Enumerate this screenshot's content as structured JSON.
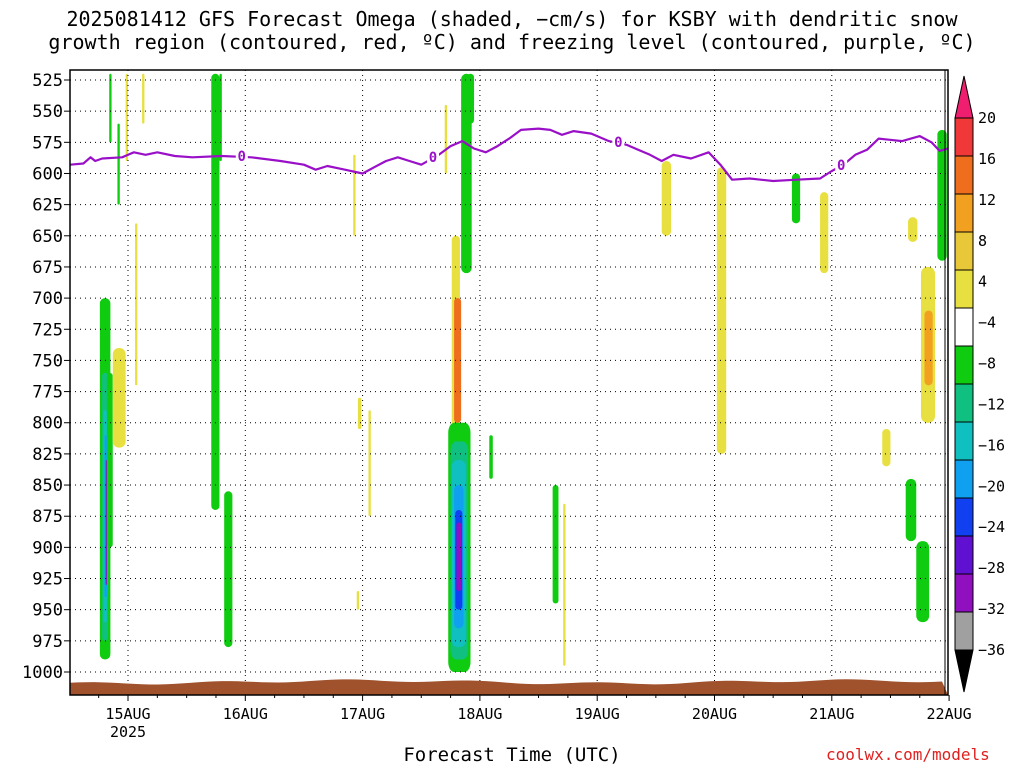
{
  "title_line1": "2025081412 GFS Forecast Omega (shaded, −cm/s) for KSBY with dendritic snow",
  "title_line2": "growth region (contoured, red, ºC) and freezing level (contoured, purple, ºC)",
  "credit": "coolwx.com/models",
  "chart_data": {
    "type": "heatmap",
    "xlabel": "Forecast Time (UTC)",
    "ylabel": "",
    "x_axis": {
      "unit": "days since 2025-08-15 00Z",
      "xlim": [
        -0.5,
        7.0
      ],
      "ticks": [
        {
          "value": 0,
          "label": "15AUG",
          "sublabel": "2025"
        },
        {
          "value": 1,
          "label": "16AUG"
        },
        {
          "value": 2,
          "label": "17AUG"
        },
        {
          "value": 3,
          "label": "18AUG"
        },
        {
          "value": 4,
          "label": "19AUG"
        },
        {
          "value": 5,
          "label": "20AUG"
        },
        {
          "value": 6,
          "label": "21AUG"
        },
        {
          "value": 7,
          "label": "22AUG"
        }
      ]
    },
    "y_axis": {
      "unit": "hPa",
      "ylim": [
        1015,
        520
      ],
      "ticks": [
        525,
        550,
        575,
        600,
        625,
        650,
        675,
        700,
        725,
        750,
        775,
        800,
        825,
        850,
        875,
        900,
        925,
        950,
        975,
        1000
      ]
    },
    "grid": "dotted",
    "colorbar": {
      "labels": [
        "20",
        "16",
        "12",
        "8",
        "4",
        "−4",
        "−8",
        "−12",
        "−16",
        "−20",
        "−24",
        "−28",
        "−32",
        "−36"
      ],
      "colors": [
        "#f01e6e",
        "#f03838",
        "#ee6e1e",
        "#f2a020",
        "#e8c838",
        "#e8e040",
        "#ffffff",
        "#10cc10",
        "#10c080",
        "#10c0c0",
        "#10a0f0",
        "#1040f0",
        "#6010d0",
        "#9010c0",
        "#a0a0a0",
        "#000000"
      ]
    },
    "omega_regions": [
      {
        "t0": -0.24,
        "t1": -0.15,
        "p0": 700,
        "p1": 990,
        "color": "#10cc10"
      },
      {
        "t0": -0.22,
        "t1": -0.17,
        "p0": 760,
        "p1": 975,
        "color": "#10c080"
      },
      {
        "t0": -0.21,
        "t1": -0.18,
        "p0": 790,
        "p1": 960,
        "color": "#10c0c0"
      },
      {
        "t0": -0.2,
        "t1": -0.18,
        "p0": 810,
        "p1": 940,
        "color": "#10a0f0"
      },
      {
        "t0": -0.19,
        "t1": -0.18,
        "p0": 830,
        "p1": 930,
        "color": "#9010c0"
      },
      {
        "t0": -0.18,
        "t1": -0.13,
        "p0": 760,
        "p1": 900,
        "color": "#10cc10"
      },
      {
        "t0": -0.13,
        "t1": -0.02,
        "p0": 740,
        "p1": 820,
        "color": "#e8e040"
      },
      {
        "t0": -0.16,
        "t1": -0.14,
        "p0": 520,
        "p1": 575,
        "color": "#10cc10"
      },
      {
        "t0": -0.09,
        "t1": -0.07,
        "p0": 560,
        "p1": 625,
        "color": "#10cc10"
      },
      {
        "t0": -0.02,
        "t1": 0.0,
        "p0": 520,
        "p1": 590,
        "color": "#e8e040"
      },
      {
        "t0": 0.12,
        "t1": 0.14,
        "p0": 520,
        "p1": 560,
        "color": "#e8e040"
      },
      {
        "t0": 0.06,
        "t1": 0.08,
        "p0": 640,
        "p1": 770,
        "color": "#e8e040"
      },
      {
        "t0": 0.71,
        "t1": 0.78,
        "p0": 520,
        "p1": 870,
        "color": "#10cc10"
      },
      {
        "t0": 0.78,
        "t1": 0.8,
        "p0": 520,
        "p1": 590,
        "color": "#10cc10"
      },
      {
        "t0": 0.82,
        "t1": 0.89,
        "p0": 855,
        "p1": 980,
        "color": "#10cc10"
      },
      {
        "t0": 1.92,
        "t1": 1.94,
        "p0": 585,
        "p1": 650,
        "color": "#e8e040"
      },
      {
        "t0": 1.96,
        "t1": 1.99,
        "p0": 780,
        "p1": 805,
        "color": "#e8e040"
      },
      {
        "t0": 2.05,
        "t1": 2.07,
        "p0": 790,
        "p1": 875,
        "color": "#e8e040"
      },
      {
        "t0": 1.95,
        "t1": 1.97,
        "p0": 935,
        "p1": 950,
        "color": "#e8e040"
      },
      {
        "t0": 2.7,
        "t1": 2.72,
        "p0": 545,
        "p1": 600,
        "color": "#e8e040"
      },
      {
        "t0": 2.76,
        "t1": 2.83,
        "p0": 650,
        "p1": 880,
        "color": "#e8e040"
      },
      {
        "t0": 2.78,
        "t1": 2.84,
        "p0": 700,
        "p1": 800,
        "color": "#ee6e1e"
      },
      {
        "t0": 2.73,
        "t1": 2.92,
        "p0": 800,
        "p1": 1000,
        "color": "#10cc10"
      },
      {
        "t0": 2.75,
        "t1": 2.9,
        "p0": 815,
        "p1": 990,
        "color": "#10c080"
      },
      {
        "t0": 2.76,
        "t1": 2.88,
        "p0": 830,
        "p1": 980,
        "color": "#10c0c0"
      },
      {
        "t0": 2.78,
        "t1": 2.86,
        "p0": 850,
        "p1": 965,
        "color": "#10a0f0"
      },
      {
        "t0": 2.79,
        "t1": 2.85,
        "p0": 870,
        "p1": 950,
        "color": "#1040f0"
      },
      {
        "t0": 2.8,
        "t1": 2.84,
        "p0": 880,
        "p1": 935,
        "color": "#9010c0"
      },
      {
        "t0": 2.84,
        "t1": 2.93,
        "p0": 520,
        "p1": 680,
        "color": "#10cc10"
      },
      {
        "t0": 2.89,
        "t1": 2.95,
        "p0": 520,
        "p1": 560,
        "color": "#10cc10"
      },
      {
        "t0": 3.08,
        "t1": 3.11,
        "p0": 810,
        "p1": 845,
        "color": "#10cc10"
      },
      {
        "t0": 3.62,
        "t1": 3.67,
        "p0": 850,
        "p1": 945,
        "color": "#10cc10"
      },
      {
        "t0": 3.71,
        "t1": 3.73,
        "p0": 865,
        "p1": 995,
        "color": "#e8e040"
      },
      {
        "t0": 4.55,
        "t1": 4.63,
        "p0": 590,
        "p1": 650,
        "color": "#e8e040"
      },
      {
        "t0": 5.02,
        "t1": 5.1,
        "p0": 595,
        "p1": 825,
        "color": "#e8e040"
      },
      {
        "t0": 5.66,
        "t1": 5.73,
        "p0": 600,
        "p1": 640,
        "color": "#10cc10"
      },
      {
        "t0": 5.9,
        "t1": 5.97,
        "p0": 615,
        "p1": 680,
        "color": "#e8e040"
      },
      {
        "t0": 6.43,
        "t1": 6.5,
        "p0": 805,
        "p1": 835,
        "color": "#e8e040"
      },
      {
        "t0": 6.65,
        "t1": 6.73,
        "p0": 635,
        "p1": 655,
        "color": "#e8e040"
      },
      {
        "t0": 6.63,
        "t1": 6.72,
        "p0": 845,
        "p1": 895,
        "color": "#10cc10"
      },
      {
        "t0": 6.72,
        "t1": 6.83,
        "p0": 895,
        "p1": 960,
        "color": "#10cc10"
      },
      {
        "t0": 6.76,
        "t1": 6.88,
        "p0": 675,
        "p1": 800,
        "color": "#e8e040"
      },
      {
        "t0": 6.79,
        "t1": 6.86,
        "p0": 710,
        "p1": 770,
        "color": "#f2a020"
      },
      {
        "t0": 6.9,
        "t1": 6.98,
        "p0": 565,
        "p1": 670,
        "color": "#10cc10"
      }
    ],
    "freezing_level": {
      "label": "0",
      "color": "#9a10c8",
      "label_times": [
        0.97,
        2.6,
        4.18,
        6.08
      ],
      "points": [
        [
          -0.5,
          593
        ],
        [
          -0.38,
          592
        ],
        [
          -0.32,
          587
        ],
        [
          -0.28,
          590
        ],
        [
          -0.22,
          588
        ],
        [
          -0.05,
          587
        ],
        [
          0.05,
          583
        ],
        [
          0.15,
          585
        ],
        [
          0.25,
          583
        ],
        [
          0.4,
          586
        ],
        [
          0.55,
          587
        ],
        [
          0.8,
          586
        ],
        [
          1.05,
          587
        ],
        [
          1.3,
          590
        ],
        [
          1.5,
          593
        ],
        [
          1.6,
          597
        ],
        [
          1.7,
          594
        ],
        [
          1.85,
          597
        ],
        [
          2.0,
          600
        ],
        [
          2.1,
          595
        ],
        [
          2.2,
          590
        ],
        [
          2.3,
          587
        ],
        [
          2.4,
          590
        ],
        [
          2.5,
          593
        ],
        [
          2.65,
          585
        ],
        [
          2.75,
          578
        ],
        [
          2.85,
          574
        ],
        [
          2.95,
          580
        ],
        [
          3.05,
          583
        ],
        [
          3.15,
          578
        ],
        [
          3.25,
          572
        ],
        [
          3.35,
          565
        ],
        [
          3.5,
          564
        ],
        [
          3.6,
          565
        ],
        [
          3.7,
          569
        ],
        [
          3.8,
          566
        ],
        [
          3.95,
          568
        ],
        [
          4.1,
          574
        ],
        [
          4.25,
          577
        ],
        [
          4.45,
          585
        ],
        [
          4.55,
          590
        ],
        [
          4.65,
          585
        ],
        [
          4.8,
          588
        ],
        [
          4.95,
          583
        ],
        [
          5.05,
          593
        ],
        [
          5.15,
          605
        ],
        [
          5.3,
          604
        ],
        [
          5.5,
          606
        ],
        [
          5.7,
          605
        ],
        [
          5.9,
          604
        ],
        [
          6.0,
          598
        ],
        [
          6.1,
          593
        ],
        [
          6.2,
          585
        ],
        [
          6.3,
          581
        ],
        [
          6.4,
          572
        ],
        [
          6.6,
          574
        ],
        [
          6.75,
          570
        ],
        [
          6.85,
          575
        ],
        [
          6.92,
          582
        ],
        [
          7.0,
          580
        ]
      ]
    },
    "terrain": {
      "color": "#a0522d",
      "top_p": 1008
    }
  }
}
